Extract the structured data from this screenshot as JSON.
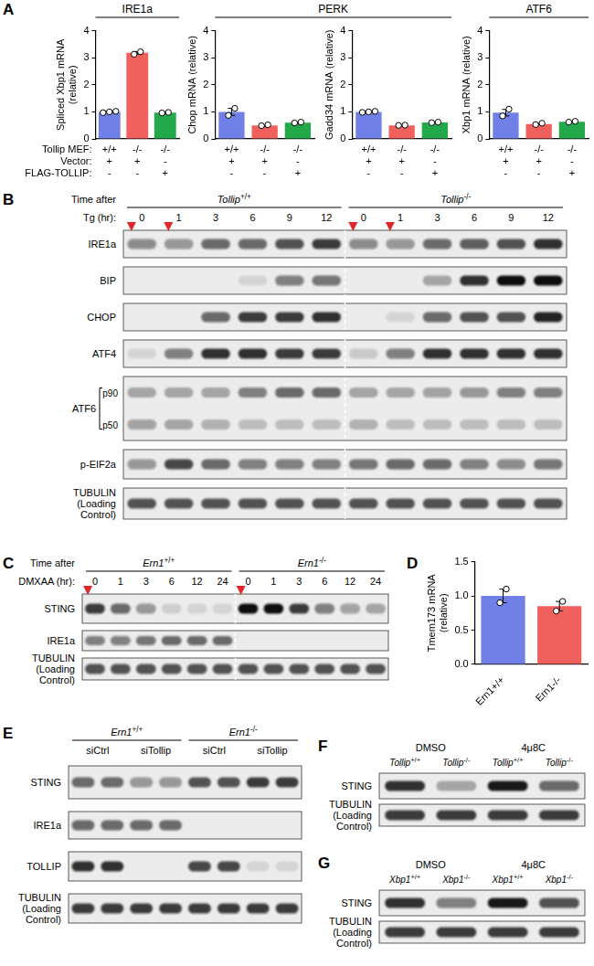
{
  "chart_data": [
    {
      "panel": "A",
      "type": "bar",
      "y_label": [
        "Spliced Xbp1 mRNA",
        "(relative)"
      ],
      "categories": [
        [
          "+/+",
          "+",
          "-"
        ],
        [
          "-/-",
          "+",
          "-"
        ],
        [
          "-/-",
          "-",
          "+"
        ]
      ],
      "category_rows": [
        "Tollip MEF:",
        "Vector:",
        "FLAG-TOLLIP:"
      ],
      "values": [
        1.0,
        3.18,
        0.97
      ],
      "errors": [
        0.03,
        0.05,
        0.02
      ],
      "points": [
        [
          0.97,
          1.0,
          1.02
        ],
        [
          3.13,
          3.22
        ],
        [
          0.96,
          0.98
        ]
      ],
      "colors": [
        "#7080e6",
        "#f0605c",
        "#23a84a"
      ],
      "ylim": [
        0,
        4
      ],
      "yticks": [
        0,
        1,
        2,
        3,
        4
      ],
      "grid": false
    },
    {
      "panel": "A",
      "type": "bar",
      "y_label": [
        "Chop mRNA (relative)"
      ],
      "categories": [
        [
          "+/+",
          "+",
          "-"
        ],
        [
          "-/-",
          "+",
          "-"
        ],
        [
          "-/-",
          "-",
          "+"
        ]
      ],
      "values": [
        1.0,
        0.5,
        0.6
      ],
      "errors": [
        0.13,
        0.02,
        0.02
      ],
      "points": [
        [
          0.87,
          1.13
        ],
        [
          0.49,
          0.52
        ],
        [
          0.59,
          0.62
        ]
      ],
      "colors": [
        "#7080e6",
        "#f0605c",
        "#23a84a"
      ],
      "ylim": [
        0,
        4
      ],
      "yticks": [
        0,
        1,
        2,
        3,
        4
      ],
      "grid": false
    },
    {
      "panel": "A",
      "type": "bar",
      "y_label": [
        "Gadd34 mRNA (relative)"
      ],
      "categories": [
        [
          "+/+",
          "+",
          "-"
        ],
        [
          "-/-",
          "+",
          "-"
        ],
        [
          "-/-",
          "-",
          "+"
        ]
      ],
      "values": [
        1.0,
        0.5,
        0.61
      ],
      "errors": [
        0.03,
        0.01,
        0.02
      ],
      "points": [
        [
          0.98,
          1.0,
          1.02
        ],
        [
          0.5,
          0.51
        ],
        [
          0.6,
          0.62
        ]
      ],
      "colors": [
        "#7080e6",
        "#f0605c",
        "#23a84a"
      ],
      "ylim": [
        0,
        4
      ],
      "yticks": [
        0,
        1,
        2,
        3,
        4
      ],
      "grid": false
    },
    {
      "panel": "A",
      "type": "bar",
      "y_label": [
        "Xbp1 mRNA (relative)"
      ],
      "categories": [
        [
          "+/+",
          "+",
          "-"
        ],
        [
          "-/-",
          "+",
          "-"
        ],
        [
          "-/-",
          "-",
          "+"
        ]
      ],
      "values": [
        0.97,
        0.55,
        0.63
      ],
      "errors": [
        0.12,
        0.03,
        0.02
      ],
      "points": [
        [
          0.85,
          1.1
        ],
        [
          0.53,
          0.58
        ],
        [
          0.62,
          0.65
        ]
      ],
      "colors": [
        "#7080e6",
        "#f0605c",
        "#23a84a"
      ],
      "ylim": [
        0,
        4
      ],
      "yticks": [
        0,
        1,
        2,
        3,
        4
      ],
      "grid": false
    },
    {
      "panel": "D",
      "type": "bar",
      "y_label": [
        "Tmem173 mRNA",
        "(relative)"
      ],
      "categories": [
        "Ern1+/+",
        "Ern1-/-"
      ],
      "values": [
        1.0,
        0.85
      ],
      "errors": [
        0.1,
        0.07
      ],
      "points": [
        [
          0.9,
          1.1
        ],
        [
          0.78,
          0.92
        ]
      ],
      "colors": [
        "#7080e6",
        "#f0605c"
      ],
      "ylim": [
        0,
        1.5
      ],
      "yticks": [
        {
          "value": 0,
          "label": "0.0"
        },
        0.5,
        {
          "value": 1,
          "label": "1.0"
        },
        1.5
      ],
      "grid": false
    }
  ],
  "panel_A_headers": [
    {
      "text": "IRE1a",
      "charts": [
        0
      ]
    },
    {
      "text": "PERK",
      "charts": [
        1,
        2
      ]
    },
    {
      "text": "ATF6",
      "charts": [
        3
      ]
    }
  ],
  "blots": [
    {
      "panel": "B",
      "time_label": [
        "Time after",
        "Tg (hr):"
      ],
      "groups": [
        {
          "label": "Tollip+/+",
          "lanes": [
            "0",
            "1",
            "3",
            "6",
            "9",
            "12"
          ]
        },
        {
          "label": "Tollip-/-",
          "lanes": [
            "0",
            "1",
            "3",
            "6",
            "9",
            "12"
          ]
        }
      ],
      "arrows": [
        0,
        1,
        6,
        7
      ],
      "rows": [
        {
          "label": [
            "IRE1a"
          ],
          "intensity": [
            0.45,
            0.4,
            0.6,
            0.6,
            0.7,
            0.8,
            0.45,
            0.4,
            0.6,
            0.65,
            0.7,
            0.85
          ]
        },
        {
          "label": [
            "BIP"
          ],
          "intensity": [
            0,
            0,
            0,
            0.1,
            0.5,
            0.55,
            0,
            0,
            0.3,
            0.85,
            1,
            1
          ]
        },
        {
          "label": [
            "CHOP"
          ],
          "intensity": [
            0,
            0,
            0.6,
            0.8,
            0.8,
            0.85,
            0,
            0.1,
            0.6,
            0.7,
            0.7,
            0.9
          ]
        },
        {
          "label": [
            "ATF4"
          ],
          "intensity": [
            0.1,
            0.5,
            0.85,
            0.85,
            0.8,
            0.8,
            0.15,
            0.5,
            0.85,
            0.85,
            0.85,
            0.85
          ]
        },
        {
          "label": [
            "ATF6"
          ],
          "bands": [
            {
              "label": "p90",
              "intensity": [
                0.3,
                0.3,
                0.3,
                0.5,
                0.6,
                0.6,
                0.3,
                0.3,
                0.35,
                0.4,
                0.5,
                0.5
              ]
            },
            {
              "label": "p50",
              "intensity": [
                0.35,
                0.3,
                0.25,
                0.2,
                0.2,
                0.2,
                0.25,
                0.2,
                0.2,
                0.2,
                0.2,
                0.2
              ]
            }
          ]
        },
        {
          "label": [
            "p-EIF2a"
          ],
          "intensity": [
            0.4,
            0.75,
            0.6,
            0.5,
            0.5,
            0.5,
            0.55,
            0.6,
            0.6,
            0.5,
            0.45,
            0.55
          ]
        },
        {
          "label": [
            "TUBULIN",
            "(Loading",
            "Control)"
          ],
          "intensity": [
            0.7,
            0.7,
            0.7,
            0.7,
            0.7,
            0.7,
            0.7,
            0.7,
            0.7,
            0.7,
            0.7,
            0.7
          ]
        }
      ]
    },
    {
      "panel": "C",
      "time_label": [
        "Time after",
        "DMXAA (hr):"
      ],
      "groups": [
        {
          "label": "Ern1+/+",
          "lanes": [
            "0",
            "1",
            "3",
            "6",
            "12",
            "24"
          ]
        },
        {
          "label": "Ern1-/-",
          "lanes": [
            "0",
            "1",
            "3",
            "6",
            "12",
            "24"
          ]
        }
      ],
      "arrows": [
        0,
        6
      ],
      "rows": [
        {
          "label": [
            "STING"
          ],
          "intensity": [
            0.8,
            0.6,
            0.4,
            0.12,
            0.1,
            0.1,
            1,
            1,
            0.8,
            0.5,
            0.35,
            0.3
          ]
        },
        {
          "label": [
            "IRE1a"
          ],
          "intensity": [
            0.5,
            0.5,
            0.55,
            0.6,
            0.6,
            0.6,
            0,
            0,
            0,
            0,
            0,
            0
          ]
        },
        {
          "label": [
            "TUBULIN",
            "(Loading",
            "Control)"
          ],
          "intensity": [
            0.7,
            0.7,
            0.7,
            0.7,
            0.7,
            0.7,
            0.7,
            0.7,
            0.7,
            0.7,
            0.7,
            0.7
          ]
        }
      ]
    },
    {
      "panel": "E",
      "groups": [
        {
          "label": "Ern1+/+",
          "subgroups": [
            {
              "label": "siCtrl",
              "lanes": 2
            },
            {
              "label": "siTollip",
              "lanes": 2
            }
          ]
        },
        {
          "label": "Ern1-/-",
          "subgroups": [
            {
              "label": "siCtrl",
              "lanes": 2
            },
            {
              "label": "siTollip",
              "lanes": 2
            }
          ]
        }
      ],
      "rows": [
        {
          "label": [
            "STING"
          ],
          "intensity": [
            0.6,
            0.6,
            0.4,
            0.4,
            0.7,
            0.7,
            0.8,
            0.8
          ]
        },
        {
          "label": [
            "IRE1a"
          ],
          "intensity": [
            0.6,
            0.6,
            0.6,
            0.6,
            0,
            0,
            0,
            0
          ]
        },
        {
          "label": [
            "TOLLIP"
          ],
          "intensity": [
            0.85,
            0.85,
            0,
            0,
            0.75,
            0.75,
            0.1,
            0.1
          ]
        },
        {
          "label": [
            "TUBULIN",
            "(Loading",
            "Control)"
          ],
          "intensity": [
            0.8,
            0.8,
            0.8,
            0.8,
            0.8,
            0.8,
            0.8,
            0.8
          ]
        }
      ]
    },
    {
      "panel": "F",
      "groups": [
        {
          "label": "DMSO",
          "lanes": [
            "Tollip+/+",
            "Tollip-/-"
          ]
        },
        {
          "label": "4μ8C",
          "lanes": [
            "Tollip+/+",
            "Tollip-/-"
          ]
        }
      ],
      "rows": [
        {
          "label": [
            "STING"
          ],
          "intensity": [
            0.85,
            0.3,
            0.95,
            0.6
          ]
        },
        {
          "label": [
            "TUBULIN",
            "(Loading",
            "Control)"
          ],
          "intensity": [
            0.8,
            0.8,
            0.8,
            0.8
          ]
        }
      ]
    },
    {
      "panel": "G",
      "groups": [
        {
          "label": "DMSO",
          "lanes": [
            "Xbp1+/+",
            "Xbp1-/-"
          ]
        },
        {
          "label": "4μ8C",
          "lanes": [
            "Xbp1+/+",
            "Xbp1-/-"
          ]
        }
      ],
      "rows": [
        {
          "label": [
            "STING"
          ],
          "intensity": [
            0.85,
            0.5,
            0.95,
            0.7
          ]
        },
        {
          "label": [
            "TUBULIN",
            "(Loading",
            "Control)"
          ],
          "intensity": [
            0.8,
            0.8,
            0.8,
            0.8
          ]
        }
      ]
    }
  ]
}
